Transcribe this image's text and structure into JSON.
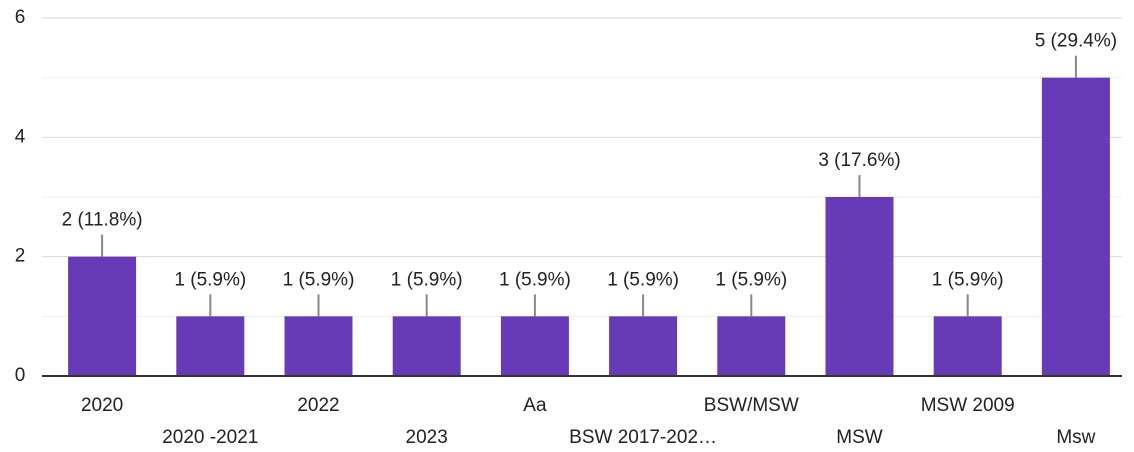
{
  "chart_data": {
    "type": "bar",
    "categories": [
      "2020",
      "2020 -2021",
      "2022",
      "2023",
      "Aa",
      "BSW 2017-202…",
      "BSW/MSW",
      "MSW",
      "MSW 2009",
      "Msw"
    ],
    "values": [
      2,
      1,
      1,
      1,
      1,
      1,
      1,
      3,
      1,
      5
    ],
    "value_labels": [
      "2 (11.8%)",
      "1 (5.9%)",
      "1 (5.9%)",
      "1 (5.9%)",
      "1 (5.9%)",
      "1 (5.9%)",
      "1 (5.9%)",
      "3 (17.6%)",
      "1 (5.9%)",
      "5 (29.4%)"
    ],
    "color": "#673ab7",
    "ylim": [
      0,
      6
    ],
    "yticks": [
      0,
      2,
      4,
      6
    ],
    "minor_yticks": [
      1,
      3,
      5
    ],
    "grid": true
  }
}
